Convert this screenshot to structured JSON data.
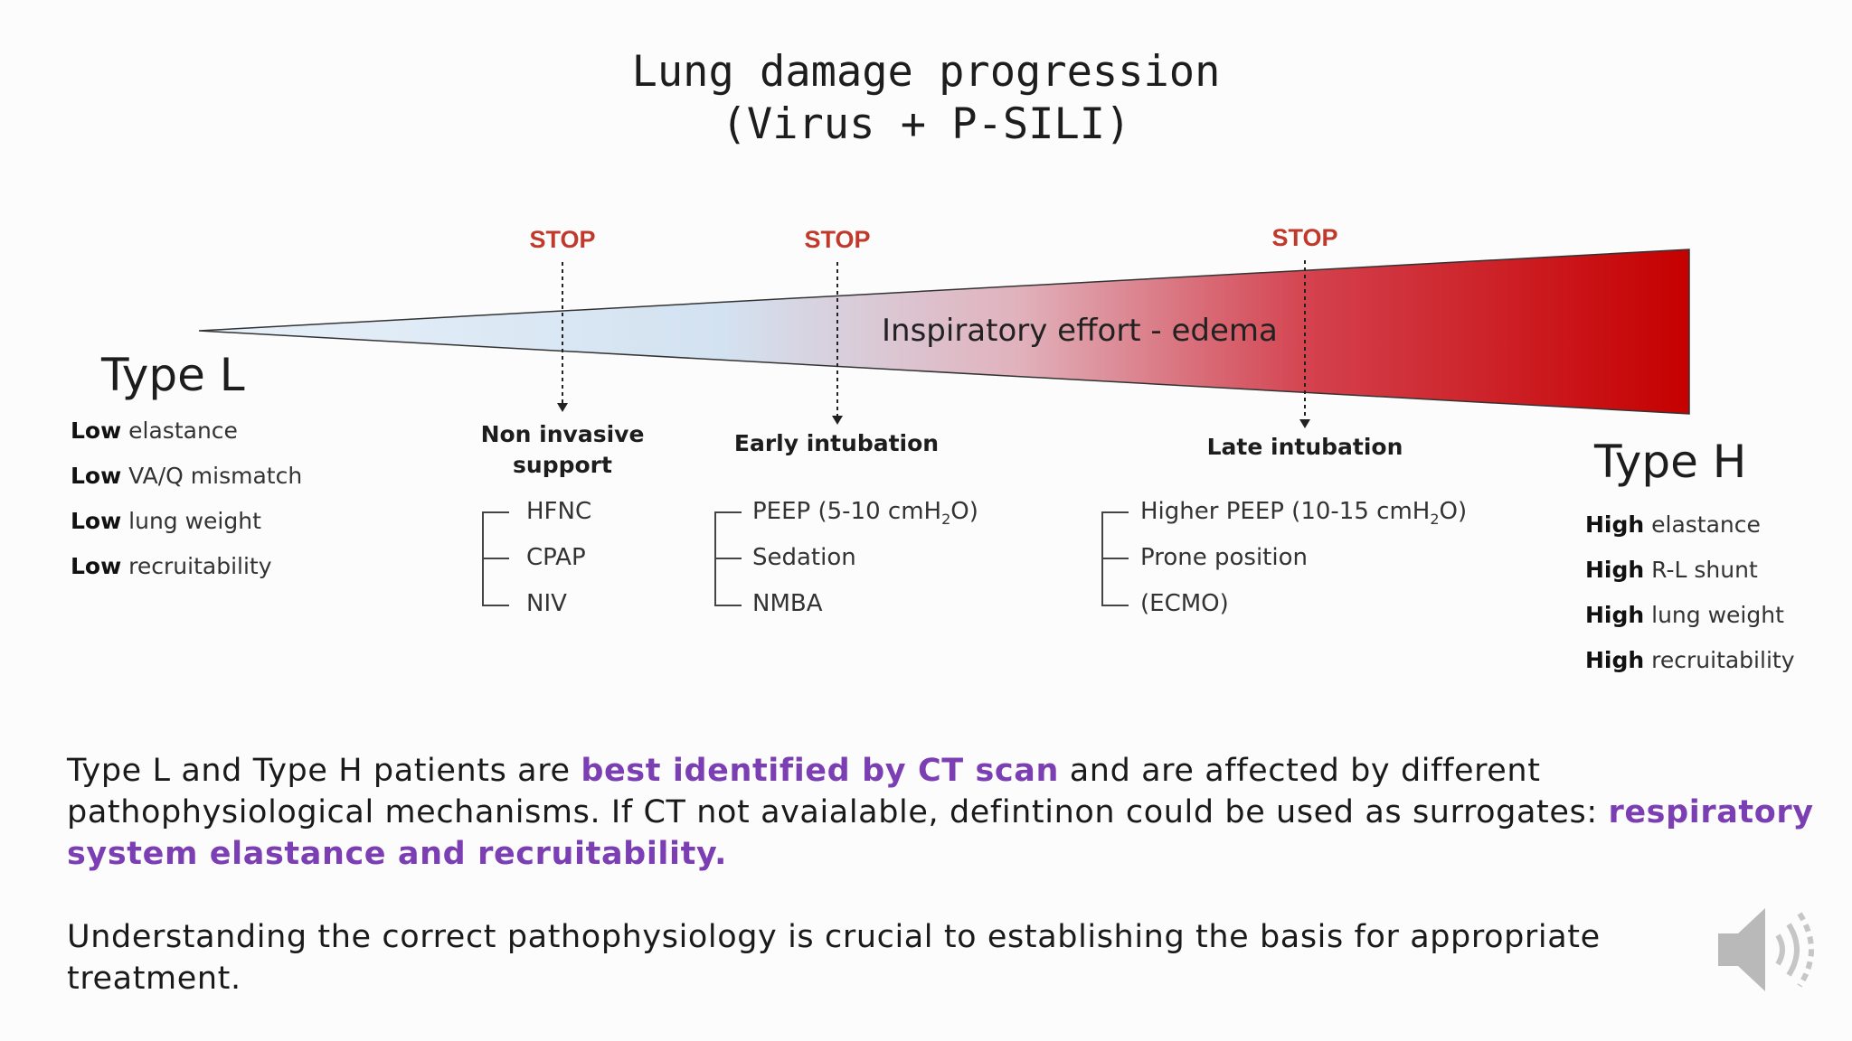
{
  "title": {
    "line1": "Lung damage progression",
    "line2": "(Virus + P-SILI)"
  },
  "wedge": {
    "label": "Inspiratory effort - edema",
    "color_start": "#dce9f5",
    "color_end": "#c80000"
  },
  "stop_label": "STOP",
  "type_l": {
    "title": "Type L",
    "props": [
      {
        "bold": "Low",
        "text": "elastance"
      },
      {
        "bold": "Low",
        "text": "VA/Q mismatch"
      },
      {
        "bold": "Low",
        "text": "lung weight"
      },
      {
        "bold": "Low",
        "text": "recruitability"
      }
    ]
  },
  "type_h": {
    "title": "Type H",
    "props": [
      {
        "bold": "High",
        "text": "elastance"
      },
      {
        "bold": "High",
        "text": "R-L shunt"
      },
      {
        "bold": "High",
        "text": "lung weight"
      },
      {
        "bold": "High",
        "text": "recruitability"
      }
    ]
  },
  "stages": {
    "niv": {
      "line1": "Non invasive",
      "line2": "support",
      "items": [
        "HFNC",
        "CPAP",
        "NIV"
      ]
    },
    "early": {
      "label": "Early intubation",
      "items": [
        "PEEP (5-10 cmH",
        "Sedation",
        "NMBA"
      ]
    },
    "late": {
      "label": "Late intubation",
      "items": [
        "Higher PEEP (10-15 cmH",
        "Prone position",
        "(ECMO)"
      ]
    },
    "unit_sub": "2",
    "unit_tail": "O)"
  },
  "paragraph1": {
    "part1": "Type L and Type H patients are ",
    "hl1": "best identified by CT scan",
    "part2": " and are affected by different pathophysiological mechanisms. If CT not avaialable, defintinon could be used as surrogates: ",
    "hl2": "respiratory system elastance and recruitability."
  },
  "paragraph2": "Understanding the correct pathophysiology is crucial to establishing the basis for appropriate treatment.",
  "speaker_icon": "speaker-icon"
}
